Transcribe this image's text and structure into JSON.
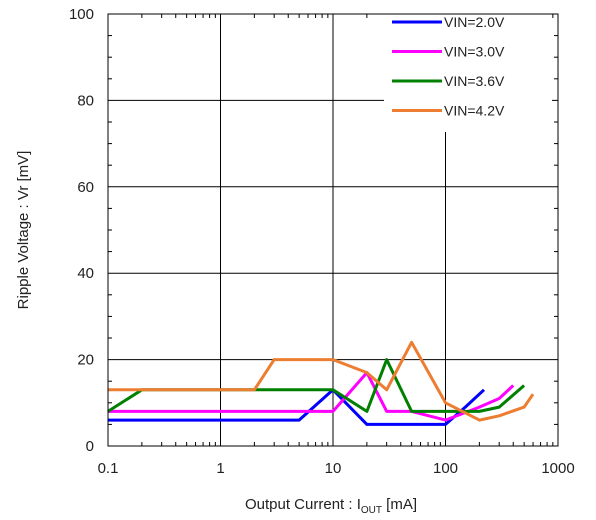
{
  "chart_data": {
    "type": "line",
    "title": "",
    "xlabel": {
      "main": "Output Current : I",
      "sub": "OUT",
      "unit": " [mA]"
    },
    "ylabel": "Ripple Voltage : Vr [mV]",
    "x_scale": "log",
    "xlim": [
      0.1,
      1000
    ],
    "ylim": [
      0,
      100
    ],
    "x_ticks": [
      {
        "value": 0.1,
        "label": "0.1"
      },
      {
        "value": 1,
        "label": "1"
      },
      {
        "value": 10,
        "label": "10"
      },
      {
        "value": 100,
        "label": "100"
      },
      {
        "value": 1000,
        "label": "1000"
      }
    ],
    "y_ticks": [
      {
        "value": 0,
        "label": "0"
      },
      {
        "value": 20,
        "label": "20"
      },
      {
        "value": 40,
        "label": "40"
      },
      {
        "value": 60,
        "label": "60"
      },
      {
        "value": 80,
        "label": "80"
      },
      {
        "value": 100,
        "label": "100"
      }
    ],
    "grid": true,
    "legend_position": "top-right",
    "series": [
      {
        "name": "VIN=2.0V",
        "color": "#0000ff",
        "x": [
          0.1,
          0.2,
          0.5,
          1,
          2,
          5,
          10,
          20,
          50,
          100,
          150,
          220
        ],
        "y": [
          6,
          6,
          6,
          6,
          6,
          6,
          13,
          5,
          5,
          5,
          9,
          13
        ]
      },
      {
        "name": "VIN=3.0V",
        "color": "#ff00ff",
        "x": [
          0.1,
          0.2,
          0.5,
          1,
          2,
          5,
          10,
          20,
          30,
          50,
          100,
          200,
          300,
          400
        ],
        "y": [
          8,
          8,
          8,
          8,
          8,
          8,
          8,
          17,
          8,
          8,
          6,
          9,
          11,
          14
        ]
      },
      {
        "name": "VIN=3.6V",
        "color": "#008000",
        "x": [
          0.1,
          0.2,
          0.5,
          1,
          2,
          5,
          10,
          20,
          30,
          50,
          100,
          200,
          300,
          500
        ],
        "y": [
          8,
          13,
          13,
          13,
          13,
          13,
          13,
          8,
          20,
          8,
          8,
          8,
          9,
          14
        ]
      },
      {
        "name": "VIN=4.2V",
        "color": "#ed7d31",
        "x": [
          0.1,
          0.2,
          0.5,
          1,
          2,
          3,
          5,
          10,
          20,
          30,
          50,
          100,
          200,
          300,
          500,
          600
        ],
        "y": [
          13,
          13,
          13,
          13,
          13,
          20,
          20,
          20,
          17,
          13,
          24,
          10,
          6,
          7,
          9,
          12
        ]
      }
    ]
  }
}
